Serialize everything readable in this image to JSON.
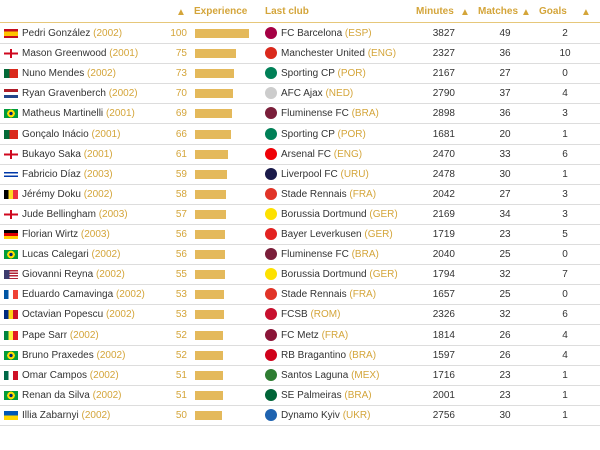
{
  "header": {
    "experience": "Experience",
    "last_club": "Last club",
    "minutes": "Minutes",
    "matches": "Matches",
    "goals": "Goals"
  },
  "accent": "#d4a53a",
  "rows": [
    {
      "name": "Pedri González",
      "year": "(2002)",
      "flag": "ESP",
      "exp": 100,
      "club": "FC Barcelona",
      "country": "(ESP)",
      "club_color": "#a50044",
      "minutes": "3827",
      "matches": "49",
      "goals": "2"
    },
    {
      "name": "Mason Greenwood",
      "year": "(2001)",
      "flag": "ENG",
      "exp": 75,
      "club": "Manchester United",
      "country": "(ENG)",
      "club_color": "#da291c",
      "minutes": "2327",
      "matches": "36",
      "goals": "10"
    },
    {
      "name": "Nuno Mendes",
      "year": "(2002)",
      "flag": "POR",
      "exp": 73,
      "club": "Sporting CP",
      "country": "(POR)",
      "club_color": "#008057",
      "minutes": "2167",
      "matches": "27",
      "goals": "0"
    },
    {
      "name": "Ryan Gravenberch",
      "year": "(2002)",
      "flag": "NED",
      "exp": 70,
      "club": "AFC Ajax",
      "country": "(NED)",
      "club_color": "#cccccc",
      "minutes": "2790",
      "matches": "37",
      "goals": "4"
    },
    {
      "name": "Matheus Martinelli",
      "year": "(2001)",
      "flag": "BRA",
      "exp": 69,
      "club": "Fluminense FC",
      "country": "(BRA)",
      "club_color": "#7a1e3a",
      "minutes": "2898",
      "matches": "36",
      "goals": "3"
    },
    {
      "name": "Gonçalo Inácio",
      "year": "(2001)",
      "flag": "POR",
      "exp": 66,
      "club": "Sporting CP",
      "country": "(POR)",
      "club_color": "#008057",
      "minutes": "1681",
      "matches": "20",
      "goals": "1"
    },
    {
      "name": "Bukayo Saka",
      "year": "(2001)",
      "flag": "ENG",
      "exp": 61,
      "club": "Arsenal FC",
      "country": "(ENG)",
      "club_color": "#ef0107",
      "minutes": "2470",
      "matches": "33",
      "goals": "6"
    },
    {
      "name": "Fabricio Díaz",
      "year": "(2003)",
      "flag": "URU",
      "exp": 59,
      "club": "Liverpool FC",
      "country": "(URU)",
      "club_color": "#1a1a4a",
      "minutes": "2478",
      "matches": "30",
      "goals": "1"
    },
    {
      "name": "Jérémy Doku",
      "year": "(2002)",
      "flag": "BEL",
      "exp": 58,
      "club": "Stade Rennais",
      "country": "(FRA)",
      "club_color": "#e13327",
      "minutes": "2042",
      "matches": "27",
      "goals": "3"
    },
    {
      "name": "Jude Bellingham",
      "year": "(2003)",
      "flag": "ENG",
      "exp": 57,
      "club": "Borussia Dortmund",
      "country": "(GER)",
      "club_color": "#fde100",
      "minutes": "2169",
      "matches": "34",
      "goals": "3"
    },
    {
      "name": "Florian Wirtz",
      "year": "(2003)",
      "flag": "GER",
      "exp": 56,
      "club": "Bayer Leverkusen",
      "country": "(GER)",
      "club_color": "#e32221",
      "minutes": "1719",
      "matches": "23",
      "goals": "5"
    },
    {
      "name": "Lucas Calegari",
      "year": "(2002)",
      "flag": "BRA",
      "exp": 56,
      "club": "Fluminense FC",
      "country": "(BRA)",
      "club_color": "#7a1e3a",
      "minutes": "2040",
      "matches": "25",
      "goals": "0"
    },
    {
      "name": "Giovanni Reyna",
      "year": "(2002)",
      "flag": "USA",
      "exp": 55,
      "club": "Borussia Dortmund",
      "country": "(GER)",
      "club_color": "#fde100",
      "minutes": "1794",
      "matches": "32",
      "goals": "7"
    },
    {
      "name": "Eduardo Camavinga",
      "year": "(2002)",
      "flag": "FRA",
      "exp": 53,
      "club": "Stade Rennais",
      "country": "(FRA)",
      "club_color": "#e13327",
      "minutes": "1657",
      "matches": "25",
      "goals": "0"
    },
    {
      "name": "Octavian Popescu",
      "year": "(2002)",
      "flag": "ROU",
      "exp": 53,
      "club": "FCSB",
      "country": "(ROM)",
      "club_color": "#c8102e",
      "minutes": "2326",
      "matches": "32",
      "goals": "6"
    },
    {
      "name": "Pape Sarr",
      "year": "(2002)",
      "flag": "SEN",
      "exp": 52,
      "club": "FC Metz",
      "country": "(FRA)",
      "club_color": "#8b1538",
      "minutes": "1814",
      "matches": "26",
      "goals": "4"
    },
    {
      "name": "Bruno Praxedes",
      "year": "(2002)",
      "flag": "BRA",
      "exp": 52,
      "club": "RB Bragantino",
      "country": "(BRA)",
      "club_color": "#d0021b",
      "minutes": "1597",
      "matches": "26",
      "goals": "4"
    },
    {
      "name": "Omar Campos",
      "year": "(2002)",
      "flag": "MEX",
      "exp": 51,
      "club": "Santos Laguna",
      "country": "(MEX)",
      "club_color": "#2e7d32",
      "minutes": "1716",
      "matches": "23",
      "goals": "1"
    },
    {
      "name": "Renan da Silva",
      "year": "(2002)",
      "flag": "BRA",
      "exp": 51,
      "club": "SE Palmeiras",
      "country": "(BRA)",
      "club_color": "#006437",
      "minutes": "2001",
      "matches": "23",
      "goals": "1"
    },
    {
      "name": "Illia Zabarnyi",
      "year": "(2002)",
      "flag": "UKR",
      "exp": 50,
      "club": "Dynamo Kyiv",
      "country": "(UKR)",
      "club_color": "#1e63b0",
      "minutes": "2756",
      "matches": "30",
      "goals": "1"
    }
  ]
}
